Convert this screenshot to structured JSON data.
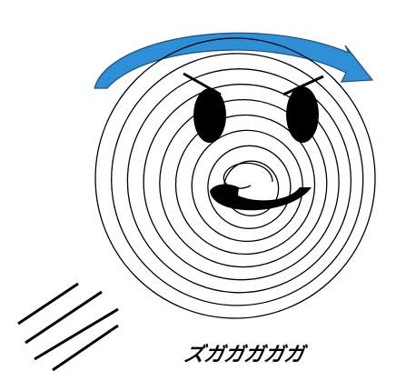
{
  "sound_effect": "ズガガガガガ",
  "colors": {
    "arrow": "#2f8fd6",
    "arrow_outline": "#1a4f80",
    "ink": "#000000",
    "background": "#ffffff"
  },
  "icons": {
    "spin_arrow": "curved-arrow-icon",
    "face": "spiral-face-icon",
    "motion_lines": "motion-lines-icon"
  }
}
